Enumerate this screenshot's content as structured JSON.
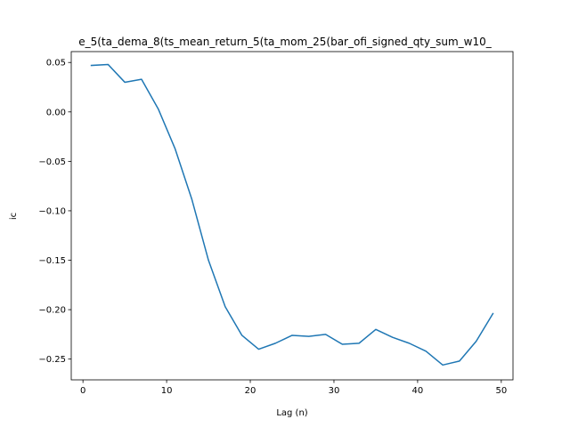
{
  "chart_data": {
    "type": "line",
    "title": "e_5(ta_dema_8(ts_mean_return_5(ta_mom_25(bar_ofi_signed_qty_sum_w10_",
    "xlabel": "Lag (n)",
    "ylabel": "ic",
    "xlim": [
      -1.4,
      51.4
    ],
    "ylim": [
      -0.271,
      0.061
    ],
    "xticks": [
      0,
      10,
      20,
      30,
      40,
      50
    ],
    "yticks": [
      0.05,
      0.0,
      -0.05,
      -0.1,
      -0.15,
      -0.2,
      -0.25
    ],
    "ytick_labels": [
      "0.05",
      "0.00",
      "−0.05",
      "−0.10",
      "−0.15",
      "−0.20",
      "−0.25"
    ],
    "grid": false,
    "series": [
      {
        "color": "#1f77b4",
        "x": [
          1,
          3,
          5,
          7,
          9,
          11,
          13,
          15,
          17,
          19,
          21,
          23,
          25,
          27,
          29,
          31,
          33,
          35,
          37,
          39,
          41,
          43,
          45,
          47,
          49
        ],
        "y": [
          0.047,
          0.048,
          0.03,
          0.033,
          0.003,
          -0.037,
          -0.088,
          -0.15,
          -0.197,
          -0.226,
          -0.24,
          -0.234,
          -0.226,
          -0.227,
          -0.225,
          -0.235,
          -0.234,
          -0.22,
          -0.228,
          -0.234,
          -0.242,
          -0.256,
          -0.252,
          -0.232,
          -0.204
        ]
      }
    ]
  }
}
